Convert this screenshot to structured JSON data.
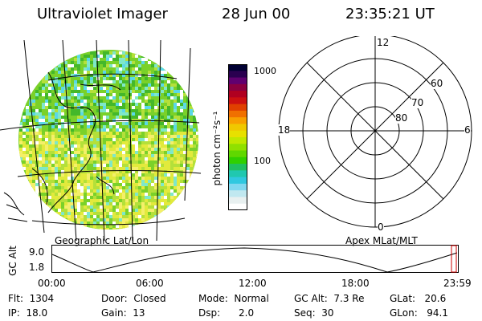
{
  "header": {
    "title": "Ultraviolet Imager",
    "date": "28 Jun 00",
    "time": "23:35:21 UT"
  },
  "image_panel": {
    "label": "Geographic Lat/Lon",
    "palette": [
      "#2a8c1e",
      "#44b82a",
      "#7ad12a",
      "#b4e03a",
      "#e2ea3c",
      "#f4ef6a",
      "#7fe8c8",
      "#5ad8e8",
      "#ffffff"
    ]
  },
  "colorbar": {
    "unit_label": "photon cm⁻²s⁻¹",
    "tick_top": "1000",
    "tick_mid": "100",
    "colors": [
      "#000033",
      "#2a0050",
      "#600070",
      "#8a0040",
      "#b00020",
      "#cc1010",
      "#e04000",
      "#f07000",
      "#f8a000",
      "#f0c800",
      "#e8e000",
      "#c0e800",
      "#90e000",
      "#60d800",
      "#30d000",
      "#20c060",
      "#20c8b0",
      "#30c8e0",
      "#80d8f0",
      "#c0e8f0",
      "#e8f0f0",
      "#ffffff"
    ]
  },
  "polar_plot": {
    "label": "Apex MLat/MLT",
    "mlt_top": "12",
    "mlt_left": "18",
    "mlt_right": "6",
    "mlt_bottom": "0",
    "lat_60": "60",
    "lat_70": "70",
    "lat_80": "80"
  },
  "altitude_plot": {
    "ylabel": "GC Alt",
    "y_top": "9.0",
    "y_bottom": "1.8",
    "x_ticks": [
      "00:00",
      "06:00",
      "12:00",
      "18:00",
      "23:59"
    ]
  },
  "status": {
    "flt": "Flt:  1304",
    "ip": "IP:  18.0",
    "door": "Door:  Closed",
    "gain": "Gain:  13",
    "mode": "Mode:  Normal",
    "dsp": "Dsp:      2.0",
    "gc_alt": "GC Alt:  7.3 Re",
    "seq": "Seq:  30",
    "glat": "GLat:   20.6",
    "glon": "GLon:   94.1"
  }
}
